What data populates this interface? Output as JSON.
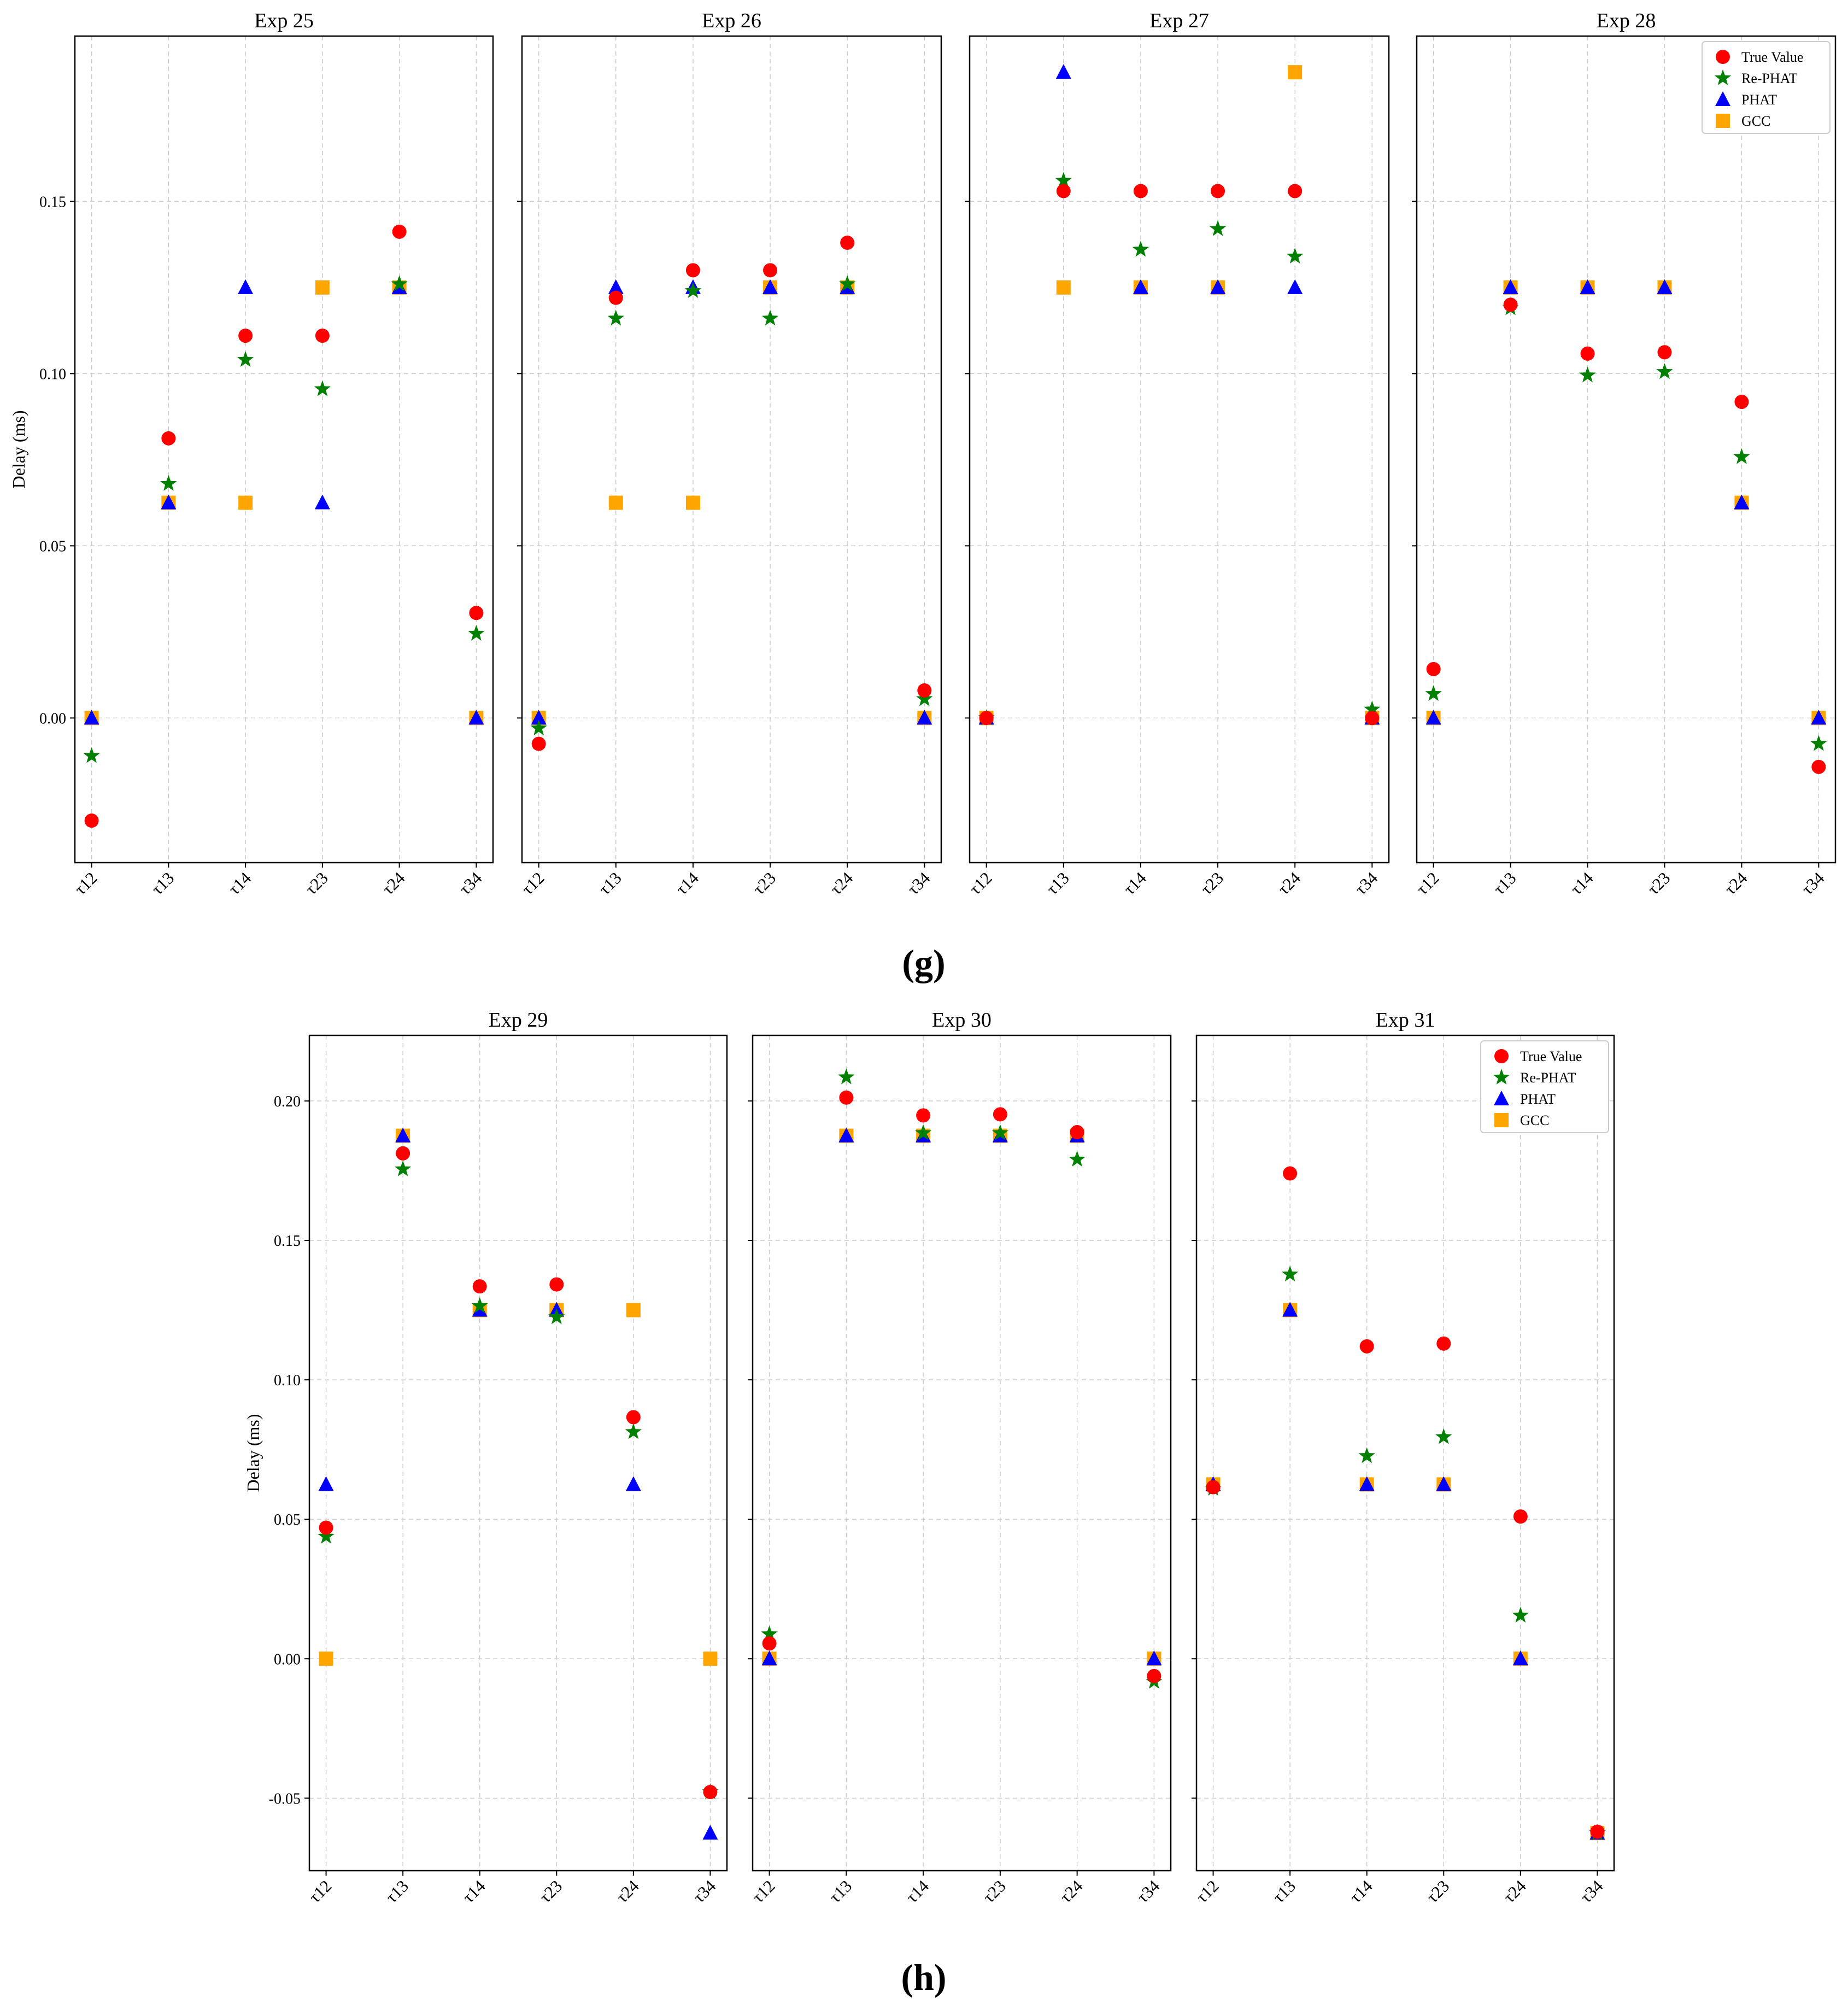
{
  "figure": {
    "captions": [
      "(g)",
      "(h)"
    ]
  },
  "colors": {
    "True Value": "#ff0000",
    "Re-PHAT": "#008000",
    "PHAT": "#0000ff",
    "GCC": "#ffa500",
    "grid": "#cccccc",
    "axis": "#000000"
  },
  "legend_order": [
    "True Value",
    "Re-PHAT",
    "PHAT",
    "GCC"
  ],
  "chart_data": [
    {
      "type": "scatter",
      "title": "Exp 25",
      "xlabel": "",
      "ylabel": "Delay (ms)",
      "categories": [
        "τ12",
        "τ13",
        "τ14",
        "τ23",
        "τ24",
        "τ34"
      ],
      "ylim": [
        -0.042,
        0.198
      ],
      "yticks": [
        0.0,
        0.05,
        0.1,
        0.15
      ],
      "ytick_labels": [
        "0.00",
        "0.05",
        "0.10",
        "0.15"
      ],
      "grid": true,
      "legend": "none",
      "series": [
        {
          "name": "GCC",
          "marker": "square",
          "values": [
            0.0,
            0.0625,
            0.0625,
            0.125,
            0.125,
            0.0
          ]
        },
        {
          "name": "PHAT",
          "marker": "triangle",
          "values": [
            0.0,
            0.0625,
            0.125,
            0.0625,
            0.125,
            0.0
          ]
        },
        {
          "name": "Re-PHAT",
          "marker": "star",
          "values": [
            -0.011,
            0.068,
            0.104,
            0.0955,
            0.126,
            0.0245
          ]
        },
        {
          "name": "True Value",
          "marker": "circle",
          "values": [
            -0.0298,
            0.0812,
            0.111,
            0.111,
            0.1412,
            0.0305
          ]
        }
      ]
    },
    {
      "type": "scatter",
      "title": "Exp 26",
      "xlabel": "",
      "ylabel": "",
      "categories": [
        "τ12",
        "τ13",
        "τ14",
        "τ23",
        "τ24",
        "τ34"
      ],
      "ylim": [
        -0.042,
        0.198
      ],
      "yticks": [
        0.0,
        0.05,
        0.1,
        0.15
      ],
      "ytick_labels": [],
      "grid": true,
      "legend": "none",
      "series": [
        {
          "name": "GCC",
          "marker": "square",
          "values": [
            0.0,
            0.0625,
            0.0625,
            0.125,
            0.125,
            0.0
          ]
        },
        {
          "name": "PHAT",
          "marker": "triangle",
          "values": [
            0.0,
            0.125,
            0.125,
            0.125,
            0.125,
            0.0
          ]
        },
        {
          "name": "Re-PHAT",
          "marker": "star",
          "values": [
            -0.003,
            0.116,
            0.124,
            0.116,
            0.126,
            0.0055
          ]
        },
        {
          "name": "True Value",
          "marker": "circle",
          "values": [
            -0.0075,
            0.122,
            0.13,
            0.13,
            0.138,
            0.008
          ]
        }
      ]
    },
    {
      "type": "scatter",
      "title": "Exp 27",
      "xlabel": "",
      "ylabel": "",
      "categories": [
        "τ12",
        "τ13",
        "τ14",
        "τ23",
        "τ24",
        "τ34"
      ],
      "ylim": [
        -0.042,
        0.198
      ],
      "yticks": [
        0.0,
        0.05,
        0.1,
        0.15
      ],
      "ytick_labels": [],
      "grid": true,
      "legend": "none",
      "series": [
        {
          "name": "GCC",
          "marker": "square",
          "values": [
            0.0,
            0.125,
            0.125,
            0.125,
            0.1875,
            0.0
          ]
        },
        {
          "name": "PHAT",
          "marker": "triangle",
          "values": [
            0.0,
            0.1875,
            0.125,
            0.125,
            0.125,
            0.0
          ]
        },
        {
          "name": "Re-PHAT",
          "marker": "star",
          "values": [
            0.0,
            0.156,
            0.136,
            0.142,
            0.134,
            0.0025
          ]
        },
        {
          "name": "True Value",
          "marker": "circle",
          "values": [
            0.0,
            0.153,
            0.153,
            0.153,
            0.153,
            0.0
          ]
        }
      ]
    },
    {
      "type": "scatter",
      "title": "Exp 28",
      "xlabel": "",
      "ylabel": "",
      "categories": [
        "τ12",
        "τ13",
        "τ14",
        "τ23",
        "τ24",
        "τ34"
      ],
      "ylim": [
        -0.042,
        0.198
      ],
      "yticks": [
        0.0,
        0.05,
        0.1,
        0.15
      ],
      "ytick_labels": [],
      "grid": true,
      "legend": "top-right",
      "series": [
        {
          "name": "GCC",
          "marker": "square",
          "values": [
            0.0,
            0.125,
            0.125,
            0.125,
            0.0625,
            0.0
          ]
        },
        {
          "name": "PHAT",
          "marker": "triangle",
          "values": [
            0.0,
            0.125,
            0.125,
            0.125,
            0.0625,
            0.0
          ]
        },
        {
          "name": "Re-PHAT",
          "marker": "star",
          "values": [
            0.007,
            0.119,
            0.0995,
            0.1005,
            0.0758,
            -0.0075
          ]
        },
        {
          "name": "True Value",
          "marker": "circle",
          "values": [
            0.0142,
            0.12,
            0.1058,
            0.1062,
            0.0918,
            -0.0142
          ]
        }
      ]
    },
    {
      "type": "scatter",
      "title": "Exp 29",
      "xlabel": "",
      "ylabel": "Delay (ms)",
      "categories": [
        "τ12",
        "τ13",
        "τ14",
        "τ23",
        "τ24",
        "τ34"
      ],
      "ylim": [
        -0.076,
        0.2235
      ],
      "yticks": [
        -0.05,
        0.0,
        0.05,
        0.1,
        0.15,
        0.2
      ],
      "ytick_labels": [
        "-0.05",
        "0.00",
        "0.05",
        "0.10",
        "0.15",
        "0.20"
      ],
      "grid": true,
      "legend": "none",
      "series": [
        {
          "name": "GCC",
          "marker": "square",
          "values": [
            0.0,
            0.1875,
            0.125,
            0.125,
            0.125,
            0.0
          ]
        },
        {
          "name": "PHAT",
          "marker": "triangle",
          "values": [
            0.0625,
            0.1875,
            0.125,
            0.125,
            0.0625,
            -0.0625
          ]
        },
        {
          "name": "Re-PHAT",
          "marker": "star",
          "values": [
            0.0438,
            0.1755,
            0.1265,
            0.1225,
            0.0813,
            -0.0478
          ]
        },
        {
          "name": "True Value",
          "marker": "circle",
          "values": [
            0.047,
            0.1812,
            0.1335,
            0.1342,
            0.0866,
            -0.0478
          ]
        }
      ]
    },
    {
      "type": "scatter",
      "title": "Exp 30",
      "xlabel": "",
      "ylabel": "",
      "categories": [
        "τ12",
        "τ13",
        "τ14",
        "τ23",
        "τ24",
        "τ34"
      ],
      "ylim": [
        -0.076,
        0.2235
      ],
      "yticks": [
        -0.05,
        0.0,
        0.05,
        0.1,
        0.15,
        0.2
      ],
      "ytick_labels": [],
      "grid": true,
      "legend": "none",
      "series": [
        {
          "name": "GCC",
          "marker": "square",
          "values": [
            0.0,
            0.1875,
            0.1875,
            0.1875,
            0.1875,
            0.0
          ]
        },
        {
          "name": "PHAT",
          "marker": "triangle",
          "values": [
            0.0,
            0.1875,
            0.1875,
            0.1875,
            0.1875,
            0.0
          ]
        },
        {
          "name": "Re-PHAT",
          "marker": "star",
          "values": [
            0.0088,
            0.2085,
            0.1885,
            0.1885,
            0.179,
            -0.0082
          ]
        },
        {
          "name": "True Value",
          "marker": "circle",
          "values": [
            0.0055,
            0.2012,
            0.1948,
            0.1952,
            0.1888,
            -0.0062
          ]
        }
      ]
    },
    {
      "type": "scatter",
      "title": "Exp 31",
      "xlabel": "",
      "ylabel": "",
      "categories": [
        "τ12",
        "τ13",
        "τ14",
        "τ23",
        "τ24",
        "τ34"
      ],
      "ylim": [
        -0.076,
        0.2235
      ],
      "yticks": [
        -0.05,
        0.0,
        0.05,
        0.1,
        0.15,
        0.2
      ],
      "ytick_labels": [],
      "grid": true,
      "legend": "top-right",
      "series": [
        {
          "name": "GCC",
          "marker": "square",
          "values": [
            0.0625,
            0.125,
            0.0625,
            0.0625,
            0.0,
            -0.0625
          ]
        },
        {
          "name": "PHAT",
          "marker": "triangle",
          "values": [
            0.0625,
            0.125,
            0.0625,
            0.0625,
            0.0,
            -0.0625
          ]
        },
        {
          "name": "Re-PHAT",
          "marker": "star",
          "values": [
            0.061,
            0.1378,
            0.0727,
            0.0795,
            0.0155,
            -0.0625
          ]
        },
        {
          "name": "True Value",
          "marker": "circle",
          "values": [
            0.0615,
            0.174,
            0.112,
            0.113,
            0.051,
            -0.062
          ]
        }
      ]
    }
  ]
}
